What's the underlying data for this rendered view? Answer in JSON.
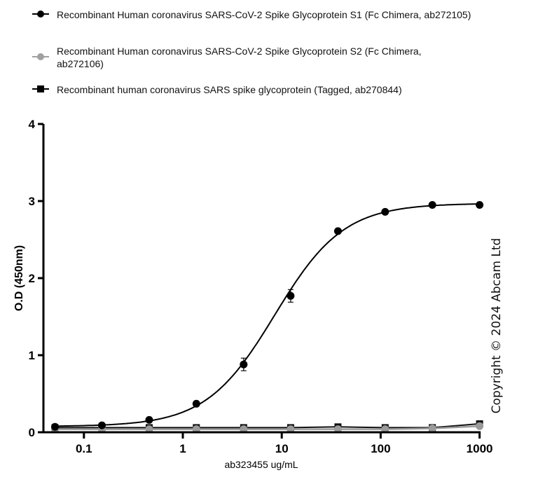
{
  "legend": {
    "items": [
      {
        "label": "Recombinant Human coronavirus SARS-CoV-2 Spike Glycoprotein S1 (Fc Chimera, ab272105)",
        "marker": "circle",
        "color": "#000000"
      },
      {
        "label": "Recombinant Human coronavirus SARS-CoV-2 Spike Glycoprotein S2 (Fc Chimera, ab272106)",
        "marker": "circle",
        "color": "#a0a0a0"
      },
      {
        "label": "Recombinant human coronavirus SARS spike glycoprotein (Tagged, ab270844)",
        "marker": "square",
        "color": "#000000"
      }
    ]
  },
  "axes": {
    "xlabel": "ab323455 ug/mL",
    "ylabel": "O.D (450nm)",
    "xticks": [
      "0.1",
      "1",
      "10",
      "100",
      "1000"
    ],
    "yticks": [
      "0",
      "1",
      "2",
      "3",
      "4"
    ]
  },
  "watermark": "Copyright ©  2024 Abcam Ltd",
  "chart_data": {
    "type": "line",
    "title": "",
    "xlabel": "ab323455 ug/mL",
    "ylabel": "O.D (450nm)",
    "xscale": "log",
    "xlim": [
      0.04,
      1000
    ],
    "ylim": [
      0,
      4
    ],
    "grid": false,
    "legend_position": "top",
    "x": [
      0.051,
      0.152,
      0.457,
      1.37,
      4.12,
      12.3,
      37.0,
      111,
      333,
      1000
    ],
    "series": [
      {
        "name": "Recombinant Human coronavirus SARS-CoV-2 Spike Glycoprotein S1 (Fc Chimera, ab272105)",
        "marker": "circle",
        "color": "#000000",
        "values": [
          0.07,
          0.09,
          0.16,
          0.37,
          0.88,
          1.77,
          2.61,
          2.86,
          2.95,
          2.95
        ],
        "fit": "sigmoidal"
      },
      {
        "name": "Recombinant Human coronavirus SARS-CoV-2 Spike Glycoprotein S2 (Fc Chimera, ab272106)",
        "marker": "circle",
        "color": "#a0a0a0",
        "values": [
          0.04,
          0.04,
          0.04,
          0.04,
          0.04,
          0.04,
          0.04,
          0.04,
          0.05,
          0.08
        ]
      },
      {
        "name": "Recombinant human coronavirus SARS spike glycoprotein (Tagged, ab270844)",
        "marker": "square",
        "color": "#000000",
        "values": [
          0.06,
          0.06,
          0.06,
          0.06,
          0.06,
          0.06,
          0.07,
          0.06,
          0.06,
          0.11
        ]
      }
    ]
  }
}
